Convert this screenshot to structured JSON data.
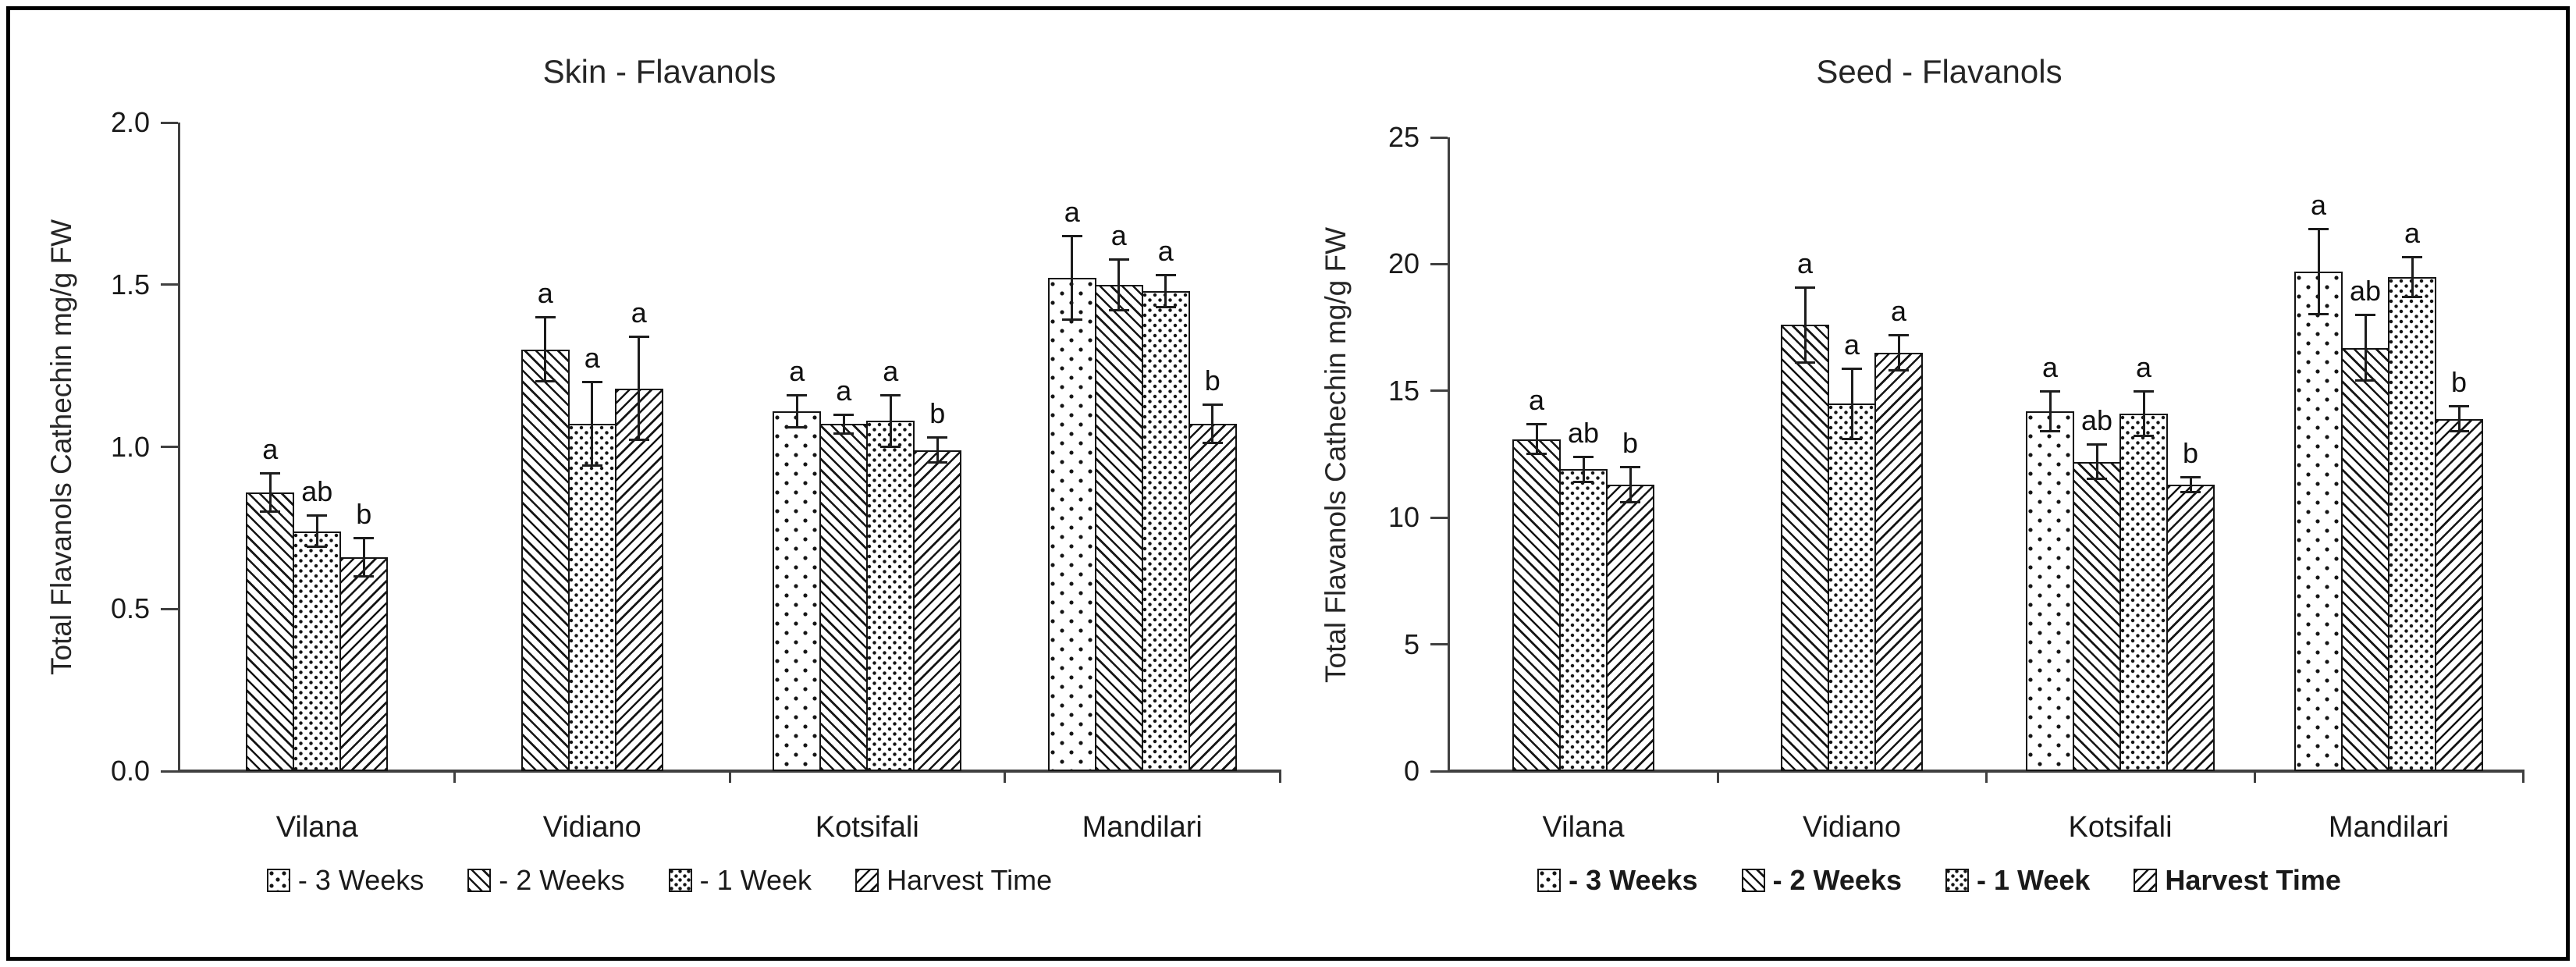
{
  "figure": {
    "kind": "two-panel grouped bar figure",
    "border_color": "#000000",
    "background": "#ffffff",
    "axis_color": "#404040",
    "bar_edge_color": "#141414"
  },
  "chart_data": [
    {
      "type": "bar",
      "title": "Skin - Flavanols",
      "ylabel": "Total Flavanols Cathechin mg/g FW",
      "xlabel": "",
      "ylim": [
        0,
        2.0
      ],
      "ytick_step": 0.5,
      "ytick_labels": [
        "0.0",
        "0.5",
        "1.0",
        "1.5",
        "2.0"
      ],
      "grid": false,
      "legend_position": "bottom",
      "categories": [
        "Vilana",
        "Vidiano",
        "Kotsifali",
        "Mandilari"
      ],
      "series": [
        {
          "name": "- 3 Weeks",
          "pattern": "dots-sparse",
          "values": [
            null,
            null,
            1.11,
            1.52
          ],
          "errors": [
            null,
            null,
            0.05,
            0.13
          ],
          "letters": [
            null,
            null,
            "a",
            "a"
          ]
        },
        {
          "name": "- 2 Weeks",
          "pattern": "hatch-backslash",
          "values": [
            0.86,
            1.3,
            1.07,
            1.5
          ],
          "errors": [
            0.06,
            0.1,
            0.03,
            0.08
          ],
          "letters": [
            "a",
            "a",
            "a",
            "a"
          ]
        },
        {
          "name": "- 1 Week",
          "pattern": "dots-dense",
          "values": [
            0.74,
            1.07,
            1.08,
            1.48
          ],
          "errors": [
            0.05,
            0.13,
            0.08,
            0.05
          ],
          "letters": [
            "ab",
            "a",
            "a",
            "a"
          ]
        },
        {
          "name": "Harvest Time",
          "pattern": "hatch-slash",
          "values": [
            0.66,
            1.18,
            0.99,
            1.07
          ],
          "errors": [
            0.06,
            0.16,
            0.04,
            0.06
          ],
          "letters": [
            "b",
            "a",
            "b",
            "b"
          ]
        }
      ]
    },
    {
      "type": "bar",
      "title": "Seed - Flavanols",
      "ylabel": "Total Flavanols Cathechin mg/g FW",
      "xlabel": "",
      "ylim": [
        0,
        25
      ],
      "ytick_step": 5,
      "ytick_labels": [
        "0",
        "5",
        "10",
        "15",
        "20",
        "25"
      ],
      "grid": false,
      "legend_position": "bottom",
      "categories": [
        "Vilana",
        "Vidiano",
        "Kotsifali",
        "Mandilari"
      ],
      "series": [
        {
          "name": "- 3 Weeks",
          "pattern": "dots-sparse",
          "values": [
            null,
            null,
            14.2,
            19.7
          ],
          "errors": [
            null,
            null,
            0.8,
            1.7
          ],
          "letters": [
            null,
            null,
            "a",
            "a"
          ]
        },
        {
          "name": "- 2 Weeks",
          "pattern": "hatch-backslash",
          "values": [
            13.1,
            17.6,
            12.2,
            16.7
          ],
          "errors": [
            0.6,
            1.5,
            0.7,
            1.3
          ],
          "letters": [
            "a",
            "a",
            "ab",
            "ab"
          ]
        },
        {
          "name": "- 1 Week",
          "pattern": "dots-dense",
          "values": [
            11.9,
            14.5,
            14.1,
            19.5
          ],
          "errors": [
            0.5,
            1.4,
            0.9,
            0.8
          ],
          "letters": [
            "ab",
            "a",
            "a",
            "a"
          ]
        },
        {
          "name": "Harvest Time",
          "pattern": "hatch-slash",
          "values": [
            11.3,
            16.5,
            11.3,
            13.9
          ],
          "errors": [
            0.7,
            0.7,
            0.3,
            0.5
          ],
          "letters": [
            "b",
            "a",
            "b",
            "b"
          ]
        }
      ]
    }
  ]
}
